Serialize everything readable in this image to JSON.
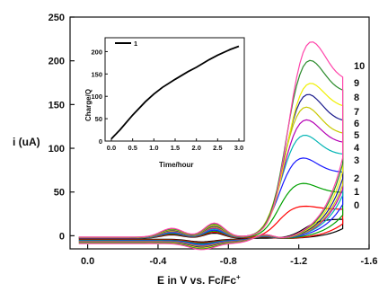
{
  "chart_data": [
    {
      "type": "line",
      "xlabel": "E in V vs. Fc/Fc",
      "xlabel_sup": "+",
      "ylabel": "i (uA)",
      "xlim": [
        0.1,
        -1.6
      ],
      "ylim": [
        -15,
        250
      ],
      "x_ticks": [
        {
          "value": 0.0,
          "label": "0.0"
        },
        {
          "value": -0.4,
          "label": "-0.4"
        },
        {
          "value": -0.8,
          "label": "-0.8"
        },
        {
          "value": -1.2,
          "label": "-1.2"
        },
        {
          "value": -1.6,
          "label": "-1.6"
        }
      ],
      "y_ticks": [
        {
          "value": 0,
          "label": "0"
        },
        {
          "value": 50,
          "label": "50"
        },
        {
          "value": 100,
          "label": "100"
        },
        {
          "value": 150,
          "label": "150"
        },
        {
          "value": 200,
          "label": "200"
        },
        {
          "value": 250,
          "label": "250"
        }
      ],
      "series": [
        {
          "label": "0",
          "color": "#000000",
          "peak": 22,
          "peakX": -1.35,
          "end": 22
        },
        {
          "label": "1",
          "color": "#ff0000",
          "peak": 38,
          "peakX": -1.2,
          "end": 33
        },
        {
          "label": "2",
          "color": "#00a000",
          "peak": 65,
          "peakX": -1.2,
          "end": 52
        },
        {
          "label": "3",
          "color": "#1a1aff",
          "peak": 95,
          "peakX": -1.2,
          "end": 75
        },
        {
          "label": "4",
          "color": "#00b4b4",
          "peak": 122,
          "peakX": -1.21,
          "end": 95
        },
        {
          "label": "5",
          "color": "#b400b4",
          "peak": 140,
          "peakX": -1.22,
          "end": 108
        },
        {
          "label": "6",
          "color": "#c8c800",
          "peak": 155,
          "peakX": -1.22,
          "end": 118
        },
        {
          "label": "7",
          "color": "#1a1a8c",
          "peak": 170,
          "peakX": -1.23,
          "end": 132
        },
        {
          "label": "8",
          "color": "#f0f000",
          "peak": 183,
          "peakX": -1.24,
          "end": 148
        },
        {
          "label": "9",
          "color": "#2a8a2a",
          "peak": 210,
          "peakX": -1.24,
          "end": 165
        },
        {
          "label": "10",
          "color": "#ff44aa",
          "peak": 232,
          "peakX": -1.25,
          "end": 178
        }
      ]
    },
    {
      "type": "line",
      "inset": true,
      "xlabel": "Time/hour",
      "ylabel": "Charge/Q",
      "xlim": [
        0.0,
        3.0
      ],
      "ylim": [
        0,
        225
      ],
      "x_ticks": [
        "0.0",
        "0.5",
        "1.0",
        "1.5",
        "2.0",
        "2.5",
        "3.0"
      ],
      "y_ticks": [
        "0",
        "50",
        "100",
        "150",
        "200"
      ],
      "legend": [
        "1"
      ],
      "series": [
        {
          "name": "1",
          "color": "#000000",
          "x": [
            0.0,
            0.2,
            0.5,
            0.8,
            1.0,
            1.2,
            1.5,
            1.8,
            2.0,
            2.3,
            2.5,
            2.8,
            3.0
          ],
          "y": [
            5,
            25,
            58,
            88,
            105,
            120,
            138,
            155,
            165,
            182,
            192,
            205,
            212
          ]
        }
      ]
    }
  ]
}
